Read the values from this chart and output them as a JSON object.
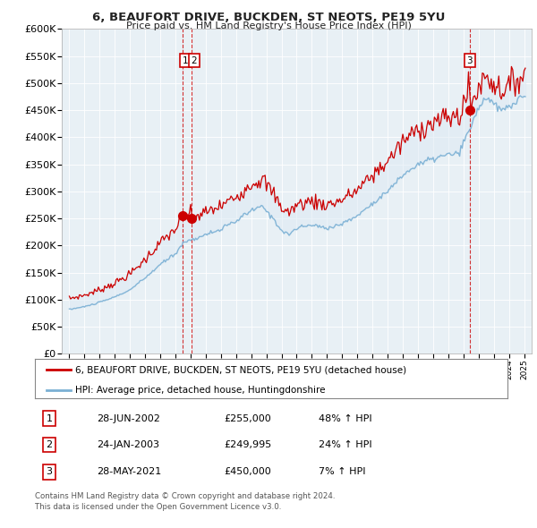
{
  "title": "6, BEAUFORT DRIVE, BUCKDEN, ST NEOTS, PE19 5YU",
  "subtitle": "Price paid vs. HM Land Registry's House Price Index (HPI)",
  "legend_line1": "6, BEAUFORT DRIVE, BUCKDEN, ST NEOTS, PE19 5YU (detached house)",
  "legend_line2": "HPI: Average price, detached house, Huntingdonshire",
  "footer1": "Contains HM Land Registry data © Crown copyright and database right 2024.",
  "footer2": "This data is licensed under the Open Government Licence v3.0.",
  "transactions": [
    {
      "num": 1,
      "date": "28-JUN-2002",
      "price": "£255,000",
      "pct": "48% ↑ HPI"
    },
    {
      "num": 2,
      "date": "24-JAN-2003",
      "price": "£249,995",
      "pct": "24% ↑ HPI"
    },
    {
      "num": 3,
      "date": "28-MAY-2021",
      "price": "£450,000",
      "pct": "7% ↑ HPI"
    }
  ],
  "vline1_x": 2002.5,
  "vline2_x": 2003.08,
  "vline3_x": 2021.42,
  "sale1_x": 2002.5,
  "sale1_y": 255000,
  "sale2_x": 2003.08,
  "sale2_y": 249995,
  "sale3_x": 2021.42,
  "sale3_y": 450000,
  "red_color": "#cc0000",
  "blue_color": "#7ab0d4",
  "vline_color": "#cc0000",
  "background": "#ffffff",
  "chart_bg": "#dde8f0",
  "ylim": [
    0,
    600000
  ],
  "xlim_start": 1994.5,
  "xlim_end": 2025.5
}
